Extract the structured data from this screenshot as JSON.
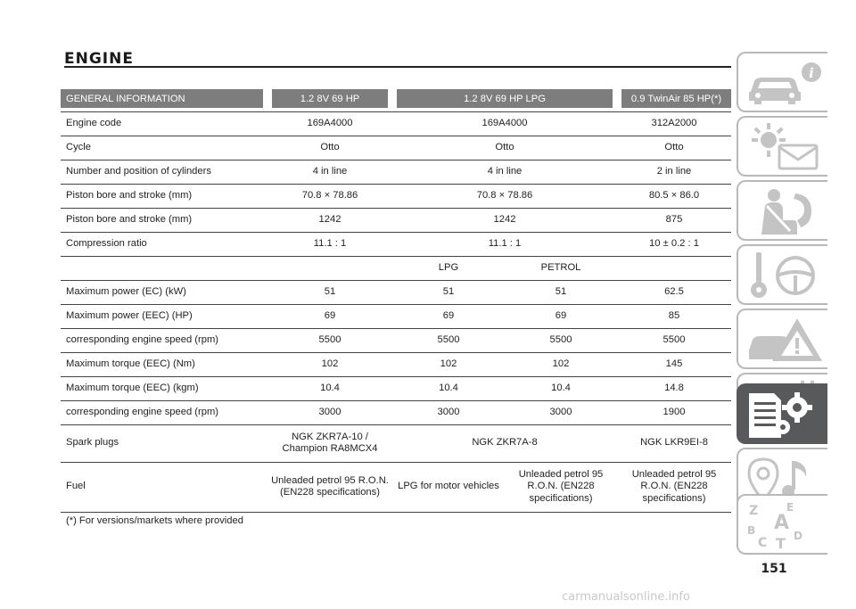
{
  "page": {
    "title": "ENGINE",
    "number": "151",
    "watermark": "carmanualsonline.info"
  },
  "table": {
    "headers": [
      "GENERAL INFORMATION",
      "1.2 8V 69 HP",
      "1.2 8V 69 HP LPG",
      "0.9 TwinAir 85 HP(*)"
    ],
    "rows_top": [
      {
        "label": "Engine code",
        "v1": "169A4000",
        "v2": "169A4000",
        "v3": "312A2000"
      },
      {
        "label": "Cycle",
        "v1": "Otto",
        "v2": "Otto",
        "v3": "Otto"
      },
      {
        "label": "Number and position of cylinders",
        "v1": "4 in line",
        "v2": "4 in line",
        "v3": "2 in line"
      },
      {
        "label": "Piston bore and stroke (mm)",
        "v1": "70.8 × 78.86",
        "v2": "70.8 × 78.86",
        "v3": "80.5 × 86.0"
      },
      {
        "label": "Piston bore and stroke (mm)",
        "v1": "1242",
        "v2": "1242",
        "v3": "875"
      },
      {
        "label": "Compression ratio",
        "v1": "11.1 : 1",
        "v2": "11.1 : 1",
        "v3": "10 ± 0.2 : 1"
      }
    ],
    "fuel_subheader": {
      "lpg": "LPG",
      "petrol": "PETROL"
    },
    "rows_bottom": [
      {
        "label": "Maximum power (EC) (kW)",
        "v1": "51",
        "lpg": "51",
        "petrol": "51",
        "v3": "62.5"
      },
      {
        "label": "Maximum power (EEC) (HP)",
        "v1": "69",
        "lpg": "69",
        "petrol": "69",
        "v3": "85"
      },
      {
        "label": "corresponding engine speed (rpm)",
        "v1": "5500",
        "lpg": "5500",
        "petrol": "5500",
        "v3": "5500"
      },
      {
        "label": "Maximum torque (EEC) (Nm)",
        "v1": "102",
        "lpg": "102",
        "petrol": "102",
        "v3": "145"
      },
      {
        "label": "Maximum torque (EEC) (kgm)",
        "v1": "10.4",
        "lpg": "10.4",
        "petrol": "10.4",
        "v3": "14.8"
      },
      {
        "label": "corresponding engine speed (rpm)",
        "v1": "3000",
        "lpg": "3000",
        "petrol": "3000",
        "v3": "1900"
      }
    ],
    "spark_plugs": {
      "label": "Spark plugs",
      "v1": "NGK ZKR7A-10 / Champion RA8MCX4",
      "v2": "NGK ZKR7A-8",
      "v3": "NGK LKR9EI-8"
    },
    "fuel": {
      "label": "Fuel",
      "v1": "Unleaded petrol 95 R.O.N. (EN228 specifications)",
      "lpg": "LPG for motor vehicles",
      "petrol": "Unleaded petrol 95 R.O.N. (EN228 specifications)",
      "v3": "Unleaded petrol 95 R.O.N. (EN228 specifications)"
    }
  },
  "footnote": "(*) For versions/markets where provided",
  "tabs": [
    {
      "icon": "car-info-icon"
    },
    {
      "icon": "warning-lights-message-icon"
    },
    {
      "icon": "safety-seatbelt-airbag-icon"
    },
    {
      "icon": "key-steering-wheel-icon"
    },
    {
      "icon": "emergency-warning-triangle-icon"
    },
    {
      "icon": "maintenance-car-wrench-icon"
    },
    {
      "icon": "technical-specifications-icon",
      "active": true
    },
    {
      "icon": "multimedia-icon"
    },
    {
      "icon": "alphabetical-index-icon"
    }
  ]
}
